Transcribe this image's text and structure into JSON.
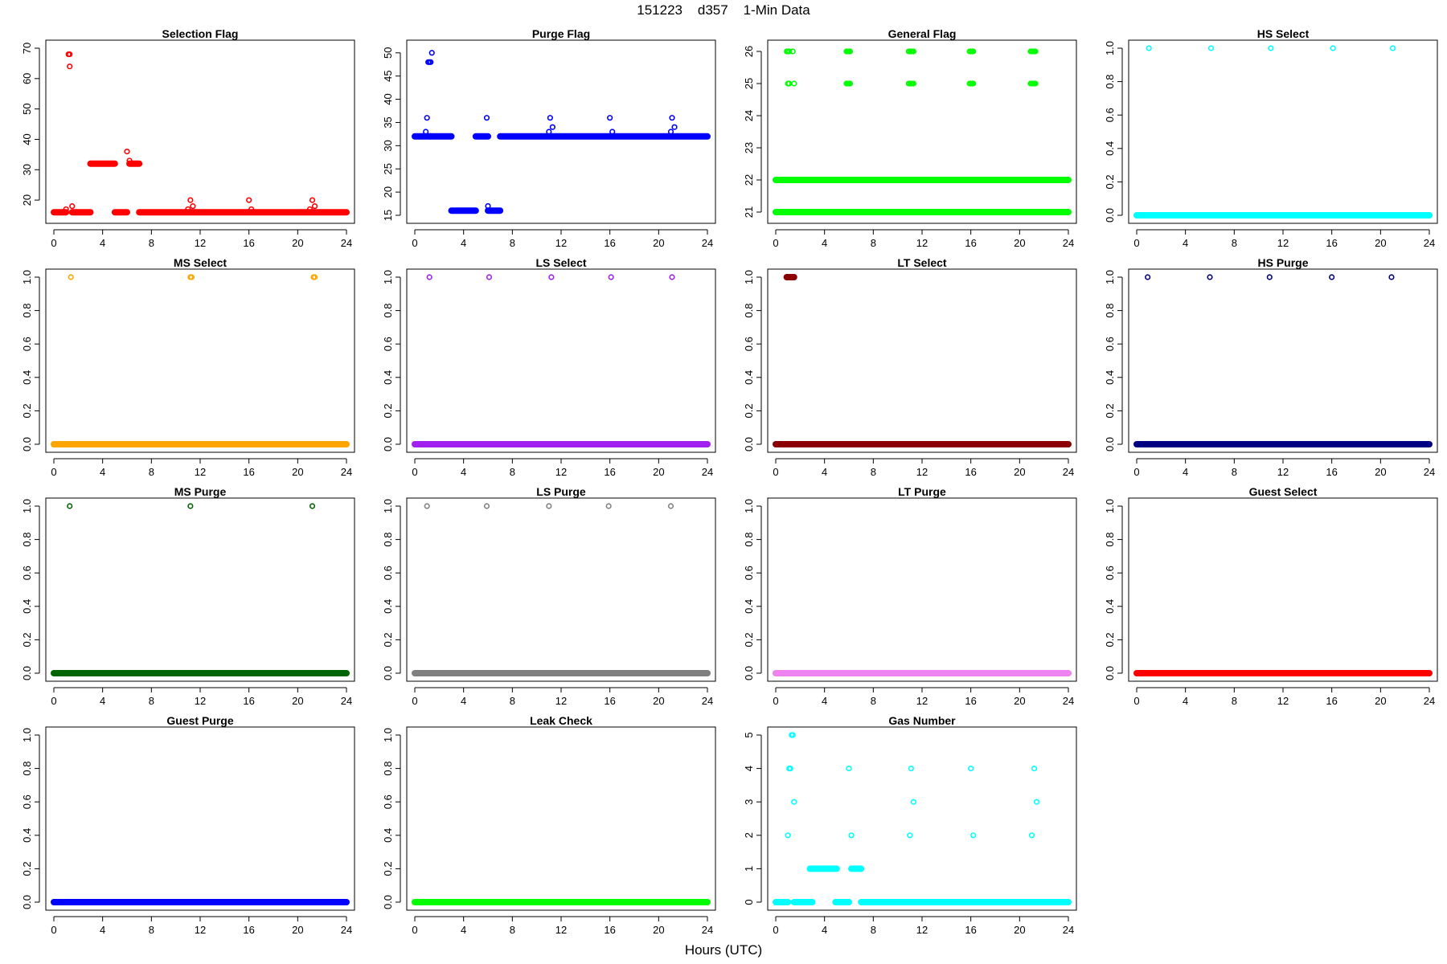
{
  "figure": {
    "title": "151223    d357    1-Min Data",
    "xlabel": "Hours (UTC)"
  },
  "chart_data": [
    {
      "type": "scatter",
      "title": "Selection Flag",
      "color": "#ff0000",
      "xlim": [
        0,
        24
      ],
      "ylim": [
        15,
        70
      ],
      "xticks": [
        0,
        4,
        8,
        12,
        16,
        20,
        24
      ],
      "yticks": [
        20,
        30,
        40,
        50,
        60,
        70
      ],
      "ytick_labels": [
        "20",
        "30",
        "40",
        "50",
        "60",
        "70"
      ],
      "segments": [
        {
          "from": 0.0,
          "to": 1.0,
          "y": 16
        },
        {
          "from": 1.5,
          "to": 3.0,
          "y": 16
        },
        {
          "from": 3.0,
          "to": 5.0,
          "y": 32
        },
        {
          "from": 5.0,
          "to": 6.0,
          "y": 16
        },
        {
          "from": 6.2,
          "to": 7.0,
          "y": 32
        },
        {
          "from": 7.0,
          "to": 24.0,
          "y": 16
        }
      ],
      "points": [
        {
          "x": 1.0,
          "y": 17
        },
        {
          "x": 1.2,
          "y": 68
        },
        {
          "x": 1.3,
          "y": 68
        },
        {
          "x": 1.3,
          "y": 64
        },
        {
          "x": 1.5,
          "y": 18
        },
        {
          "x": 6.0,
          "y": 36
        },
        {
          "x": 6.2,
          "y": 33
        },
        {
          "x": 11.0,
          "y": 17
        },
        {
          "x": 11.2,
          "y": 20
        },
        {
          "x": 11.4,
          "y": 18
        },
        {
          "x": 16.0,
          "y": 20
        },
        {
          "x": 16.2,
          "y": 17
        },
        {
          "x": 21.0,
          "y": 17
        },
        {
          "x": 21.2,
          "y": 20
        },
        {
          "x": 21.4,
          "y": 18
        }
      ]
    },
    {
      "type": "scatter",
      "title": "Purge Flag",
      "color": "#0000ff",
      "xlim": [
        0,
        24
      ],
      "ylim": [
        15,
        51
      ],
      "xticks": [
        0,
        4,
        8,
        12,
        16,
        20,
        24
      ],
      "yticks": [
        15,
        20,
        25,
        30,
        35,
        40,
        45,
        50
      ],
      "ytick_labels": [
        "15",
        "20",
        "25",
        "30",
        "35",
        "40",
        "45",
        "50"
      ],
      "segments": [
        {
          "from": 0.0,
          "to": 1.3,
          "y": 32
        },
        {
          "from": 1.3,
          "to": 3.0,
          "y": 32
        },
        {
          "from": 3.0,
          "to": 5.0,
          "y": 16
        },
        {
          "from": 5.0,
          "to": 6.0,
          "y": 32
        },
        {
          "from": 6.0,
          "to": 7.0,
          "y": 16
        },
        {
          "from": 7.0,
          "to": 24.0,
          "y": 32
        }
      ],
      "points": [
        {
          "x": 0.9,
          "y": 33
        },
        {
          "x": 1.0,
          "y": 36
        },
        {
          "x": 1.1,
          "y": 48
        },
        {
          "x": 1.2,
          "y": 48
        },
        {
          "x": 1.3,
          "y": 48
        },
        {
          "x": 1.4,
          "y": 50
        },
        {
          "x": 5.9,
          "y": 36
        },
        {
          "x": 6.0,
          "y": 17
        },
        {
          "x": 11.0,
          "y": 33
        },
        {
          "x": 11.1,
          "y": 36
        },
        {
          "x": 11.3,
          "y": 34
        },
        {
          "x": 16.0,
          "y": 36
        },
        {
          "x": 16.2,
          "y": 33
        },
        {
          "x": 21.0,
          "y": 33
        },
        {
          "x": 21.1,
          "y": 36
        },
        {
          "x": 21.3,
          "y": 34
        }
      ]
    },
    {
      "type": "scatter",
      "title": "General Flag",
      "color": "#00ff00",
      "xlim": [
        0,
        24
      ],
      "ylim": [
        20.9,
        26.1
      ],
      "xticks": [
        0,
        4,
        8,
        12,
        16,
        20,
        24
      ],
      "yticks": [
        21,
        22,
        23,
        24,
        25,
        26
      ],
      "ytick_labels": [
        "21",
        "22",
        "23",
        "24",
        "25",
        "26"
      ],
      "segments": [
        {
          "from": 0.0,
          "to": 24.0,
          "y": 21
        },
        {
          "from": 0.0,
          "to": 24.0,
          "y": 22
        }
      ],
      "points": [
        {
          "x": 0.9,
          "y": 26
        },
        {
          "x": 1.0,
          "y": 26
        },
        {
          "x": 1.1,
          "y": 26
        },
        {
          "x": 1.4,
          "y": 26
        },
        {
          "x": 1.0,
          "y": 25
        },
        {
          "x": 1.1,
          "y": 25
        },
        {
          "x": 1.5,
          "y": 25
        },
        {
          "x": 5.8,
          "y": 26
        },
        {
          "x": 5.9,
          "y": 26
        },
        {
          "x": 6.0,
          "y": 26
        },
        {
          "x": 6.1,
          "y": 26
        },
        {
          "x": 5.8,
          "y": 25
        },
        {
          "x": 5.9,
          "y": 25
        },
        {
          "x": 6.0,
          "y": 25
        },
        {
          "x": 6.1,
          "y": 25
        },
        {
          "x": 10.9,
          "y": 26
        },
        {
          "x": 11.0,
          "y": 26
        },
        {
          "x": 11.1,
          "y": 26
        },
        {
          "x": 11.2,
          "y": 26
        },
        {
          "x": 11.3,
          "y": 26
        },
        {
          "x": 10.9,
          "y": 25
        },
        {
          "x": 11.0,
          "y": 25
        },
        {
          "x": 11.1,
          "y": 25
        },
        {
          "x": 11.2,
          "y": 25
        },
        {
          "x": 11.3,
          "y": 25
        },
        {
          "x": 15.9,
          "y": 26
        },
        {
          "x": 16.0,
          "y": 26
        },
        {
          "x": 16.1,
          "y": 26
        },
        {
          "x": 16.2,
          "y": 26
        },
        {
          "x": 15.9,
          "y": 25
        },
        {
          "x": 16.0,
          "y": 25
        },
        {
          "x": 16.1,
          "y": 25
        },
        {
          "x": 16.2,
          "y": 25
        },
        {
          "x": 20.9,
          "y": 26
        },
        {
          "x": 21.0,
          "y": 26
        },
        {
          "x": 21.1,
          "y": 26
        },
        {
          "x": 21.2,
          "y": 26
        },
        {
          "x": 21.3,
          "y": 26
        },
        {
          "x": 20.9,
          "y": 25
        },
        {
          "x": 21.0,
          "y": 25
        },
        {
          "x": 21.1,
          "y": 25
        },
        {
          "x": 21.2,
          "y": 25
        },
        {
          "x": 21.3,
          "y": 25
        }
      ]
    },
    {
      "type": "scatter",
      "title": "HS Select",
      "color": "#00ffff",
      "xlim": [
        0,
        24
      ],
      "ylim": [
        0,
        1
      ],
      "xticks": [
        0,
        4,
        8,
        12,
        16,
        20,
        24
      ],
      "yticks": [
        0,
        0.2,
        0.4,
        0.6,
        0.8,
        1.0
      ],
      "ytick_labels": [
        "0.0",
        "0.2",
        "0.4",
        "0.6",
        "0.8",
        "1.0"
      ],
      "segments": [
        {
          "from": 0.0,
          "to": 24.0,
          "y": 0
        }
      ],
      "points": [
        {
          "x": 1.0,
          "y": 1
        },
        {
          "x": 6.1,
          "y": 1
        },
        {
          "x": 11.0,
          "y": 1
        },
        {
          "x": 16.1,
          "y": 1
        },
        {
          "x": 21.0,
          "y": 1
        }
      ]
    },
    {
      "type": "scatter",
      "title": "MS Select",
      "color": "#ffa500",
      "xlim": [
        0,
        24
      ],
      "ylim": [
        0,
        1
      ],
      "xticks": [
        0,
        4,
        8,
        12,
        16,
        20,
        24
      ],
      "yticks": [
        0,
        0.2,
        0.4,
        0.6,
        0.8,
        1.0
      ],
      "ytick_labels": [
        "0.0",
        "0.2",
        "0.4",
        "0.6",
        "0.8",
        "1.0"
      ],
      "segments": [
        {
          "from": 0.0,
          "to": 24.0,
          "y": 0
        }
      ],
      "points": [
        {
          "x": 1.4,
          "y": 1
        },
        {
          "x": 11.2,
          "y": 1
        },
        {
          "x": 11.3,
          "y": 1
        },
        {
          "x": 21.3,
          "y": 1
        },
        {
          "x": 21.4,
          "y": 1
        }
      ]
    },
    {
      "type": "scatter",
      "title": "LS Select",
      "color": "#a020f0",
      "xlim": [
        0,
        24
      ],
      "ylim": [
        0,
        1
      ],
      "xticks": [
        0,
        4,
        8,
        12,
        16,
        20,
        24
      ],
      "yticks": [
        0,
        0.2,
        0.4,
        0.6,
        0.8,
        1.0
      ],
      "ytick_labels": [
        "0.0",
        "0.2",
        "0.4",
        "0.6",
        "0.8",
        "1.0"
      ],
      "segments": [
        {
          "from": 0.0,
          "to": 24.0,
          "y": 0
        }
      ],
      "points": [
        {
          "x": 1.2,
          "y": 1
        },
        {
          "x": 6.1,
          "y": 1
        },
        {
          "x": 11.2,
          "y": 1
        },
        {
          "x": 16.1,
          "y": 1
        },
        {
          "x": 21.1,
          "y": 1
        }
      ]
    },
    {
      "type": "scatter",
      "title": "LT Select",
      "color": "#8b0000",
      "xlim": [
        0,
        24
      ],
      "ylim": [
        0,
        1
      ],
      "xticks": [
        0,
        4,
        8,
        12,
        16,
        20,
        24
      ],
      "yticks": [
        0,
        0.2,
        0.4,
        0.6,
        0.8,
        1.0
      ],
      "ytick_labels": [
        "0.0",
        "0.2",
        "0.4",
        "0.6",
        "0.8",
        "1.0"
      ],
      "segments": [
        {
          "from": 0.0,
          "to": 24.0,
          "y": 0
        },
        {
          "from": 0.9,
          "to": 1.5,
          "y": 1
        }
      ],
      "points": []
    },
    {
      "type": "scatter",
      "title": "HS Purge",
      "color": "#000080",
      "xlim": [
        0,
        24
      ],
      "ylim": [
        0,
        1
      ],
      "xticks": [
        0,
        4,
        8,
        12,
        16,
        20,
        24
      ],
      "yticks": [
        0,
        0.2,
        0.4,
        0.6,
        0.8,
        1.0
      ],
      "ytick_labels": [
        "0.0",
        "0.2",
        "0.4",
        "0.6",
        "0.8",
        "1.0"
      ],
      "segments": [
        {
          "from": 0.0,
          "to": 24.0,
          "y": 0
        }
      ],
      "points": [
        {
          "x": 0.9,
          "y": 1
        },
        {
          "x": 6.0,
          "y": 1
        },
        {
          "x": 10.9,
          "y": 1
        },
        {
          "x": 16.0,
          "y": 1
        },
        {
          "x": 20.9,
          "y": 1
        }
      ]
    },
    {
      "type": "scatter",
      "title": "MS Purge",
      "color": "#006400",
      "xlim": [
        0,
        24
      ],
      "ylim": [
        0,
        1
      ],
      "xticks": [
        0,
        4,
        8,
        12,
        16,
        20,
        24
      ],
      "yticks": [
        0,
        0.2,
        0.4,
        0.6,
        0.8,
        1.0
      ],
      "ytick_labels": [
        "0.0",
        "0.2",
        "0.4",
        "0.6",
        "0.8",
        "1.0"
      ],
      "segments": [
        {
          "from": 0.0,
          "to": 24.0,
          "y": 0
        }
      ],
      "points": [
        {
          "x": 1.3,
          "y": 1
        },
        {
          "x": 11.2,
          "y": 1
        },
        {
          "x": 21.2,
          "y": 1
        }
      ]
    },
    {
      "type": "scatter",
      "title": "LS Purge",
      "color": "#808080",
      "xlim": [
        0,
        24
      ],
      "ylim": [
        0,
        1
      ],
      "xticks": [
        0,
        4,
        8,
        12,
        16,
        20,
        24
      ],
      "yticks": [
        0,
        0.2,
        0.4,
        0.6,
        0.8,
        1.0
      ],
      "ytick_labels": [
        "0.0",
        "0.2",
        "0.4",
        "0.6",
        "0.8",
        "1.0"
      ],
      "segments": [
        {
          "from": 0.0,
          "to": 24.0,
          "y": 0
        }
      ],
      "points": [
        {
          "x": 1.0,
          "y": 1
        },
        {
          "x": 5.9,
          "y": 1
        },
        {
          "x": 11.0,
          "y": 1
        },
        {
          "x": 15.9,
          "y": 1
        },
        {
          "x": 21.0,
          "y": 1
        }
      ]
    },
    {
      "type": "scatter",
      "title": "LT Purge",
      "color": "#ee82ee",
      "xlim": [
        0,
        24
      ],
      "ylim": [
        0,
        1
      ],
      "xticks": [
        0,
        4,
        8,
        12,
        16,
        20,
        24
      ],
      "yticks": [
        0,
        0.2,
        0.4,
        0.6,
        0.8,
        1.0
      ],
      "ytick_labels": [
        "0.0",
        "0.2",
        "0.4",
        "0.6",
        "0.8",
        "1.0"
      ],
      "segments": [
        {
          "from": 0.0,
          "to": 24.0,
          "y": 0
        }
      ],
      "points": []
    },
    {
      "type": "scatter",
      "title": "Guest Select",
      "color": "#ff0000",
      "xlim": [
        0,
        24
      ],
      "ylim": [
        0,
        1
      ],
      "xticks": [
        0,
        4,
        8,
        12,
        16,
        20,
        24
      ],
      "yticks": [
        0,
        0.2,
        0.4,
        0.6,
        0.8,
        1.0
      ],
      "ytick_labels": [
        "0.0",
        "0.2",
        "0.4",
        "0.6",
        "0.8",
        "1.0"
      ],
      "segments": [
        {
          "from": 0.0,
          "to": 24.0,
          "y": 0
        }
      ],
      "points": []
    },
    {
      "type": "scatter",
      "title": "Guest Purge",
      "color": "#0000ff",
      "xlim": [
        0,
        24
      ],
      "ylim": [
        0,
        1
      ],
      "xticks": [
        0,
        4,
        8,
        12,
        16,
        20,
        24
      ],
      "yticks": [
        0,
        0.2,
        0.4,
        0.6,
        0.8,
        1.0
      ],
      "ytick_labels": [
        "0.0",
        "0.2",
        "0.4",
        "0.6",
        "0.8",
        "1.0"
      ],
      "segments": [
        {
          "from": 0.0,
          "to": 24.0,
          "y": 0
        }
      ],
      "points": []
    },
    {
      "type": "scatter",
      "title": "Leak Check",
      "color": "#00ff00",
      "xlim": [
        0,
        24
      ],
      "ylim": [
        0,
        1
      ],
      "xticks": [
        0,
        4,
        8,
        12,
        16,
        20,
        24
      ],
      "yticks": [
        0,
        0.2,
        0.4,
        0.6,
        0.8,
        1.0
      ],
      "ytick_labels": [
        "0.0",
        "0.2",
        "0.4",
        "0.6",
        "0.8",
        "1.0"
      ],
      "segments": [
        {
          "from": 0.0,
          "to": 24.0,
          "y": 0
        }
      ],
      "points": []
    },
    {
      "type": "scatter",
      "title": "Gas Number",
      "color": "#00ffff",
      "xlim": [
        0,
        24
      ],
      "ylim": [
        0,
        5
      ],
      "xticks": [
        0,
        4,
        8,
        12,
        16,
        20,
        24
      ],
      "yticks": [
        0,
        1,
        2,
        3,
        4,
        5
      ],
      "ytick_labels": [
        "0",
        "1",
        "2",
        "3",
        "4",
        "5"
      ],
      "segments": [
        {
          "from": 0.0,
          "to": 1.0,
          "y": 0
        },
        {
          "from": 1.5,
          "to": 3.0,
          "y": 0
        },
        {
          "from": 2.8,
          "to": 5.0,
          "y": 1
        },
        {
          "from": 4.9,
          "to": 6.0,
          "y": 0
        },
        {
          "from": 6.2,
          "to": 7.0,
          "y": 1
        },
        {
          "from": 7.0,
          "to": 24.0,
          "y": 0
        }
      ],
      "points": [
        {
          "x": 1.0,
          "y": 2
        },
        {
          "x": 1.1,
          "y": 4
        },
        {
          "x": 1.2,
          "y": 4
        },
        {
          "x": 1.3,
          "y": 5
        },
        {
          "x": 1.4,
          "y": 5
        },
        {
          "x": 1.5,
          "y": 3
        },
        {
          "x": 6.0,
          "y": 4
        },
        {
          "x": 6.2,
          "y": 2
        },
        {
          "x": 11.0,
          "y": 2
        },
        {
          "x": 11.1,
          "y": 4
        },
        {
          "x": 11.3,
          "y": 3
        },
        {
          "x": 16.0,
          "y": 4
        },
        {
          "x": 16.2,
          "y": 2
        },
        {
          "x": 21.0,
          "y": 2
        },
        {
          "x": 21.2,
          "y": 4
        },
        {
          "x": 21.4,
          "y": 3
        }
      ]
    }
  ]
}
